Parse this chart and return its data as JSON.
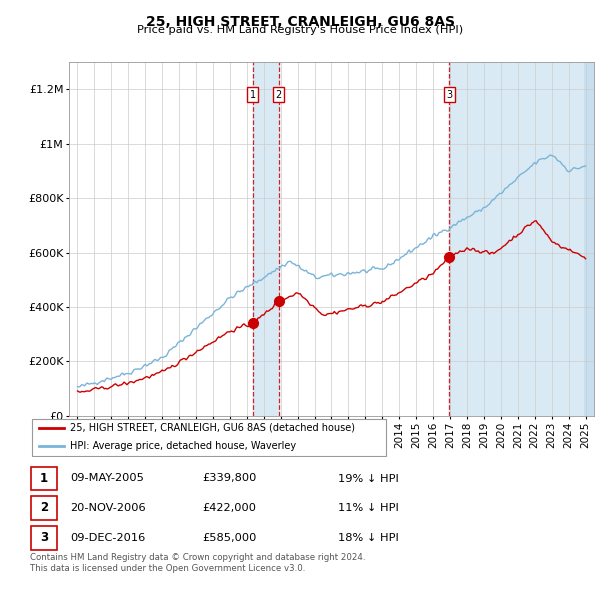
{
  "title": "25, HIGH STREET, CRANLEIGH, GU6 8AS",
  "subtitle": "Price paid vs. HM Land Registry's House Price Index (HPI)",
  "red_label": "25, HIGH STREET, CRANLEIGH, GU6 8AS (detached house)",
  "blue_label": "HPI: Average price, detached house, Waverley",
  "footer1": "Contains HM Land Registry data © Crown copyright and database right 2024.",
  "footer2": "This data is licensed under the Open Government Licence v3.0.",
  "transactions": [
    {
      "num": 1,
      "date": "09-MAY-2005",
      "price": "£339,800",
      "pct": "19% ↓ HPI",
      "year": 2005.36,
      "price_val": 339800
    },
    {
      "num": 2,
      "date": "20-NOV-2006",
      "price": "£422,000",
      "pct": "11% ↓ HPI",
      "year": 2006.89,
      "price_val": 422000
    },
    {
      "num": 3,
      "date": "09-DEC-2016",
      "price": "£585,000",
      "pct": "18% ↓ HPI",
      "year": 2016.94,
      "price_val": 585000
    }
  ],
  "ylim": [
    0,
    1300000
  ],
  "yticks": [
    0,
    200000,
    400000,
    600000,
    800000,
    1000000,
    1200000
  ],
  "ytick_labels": [
    "£0",
    "£200K",
    "£400K",
    "£600K",
    "£800K",
    "£1M",
    "£1.2M"
  ],
  "xmin": 1994.5,
  "xmax": 2025.5,
  "hpi_color": "#7ab4d8",
  "price_color": "#cc0000",
  "vline_color": "#cc0000",
  "shade_color": "#daeaf5",
  "hatch_color": "#c8dff0"
}
